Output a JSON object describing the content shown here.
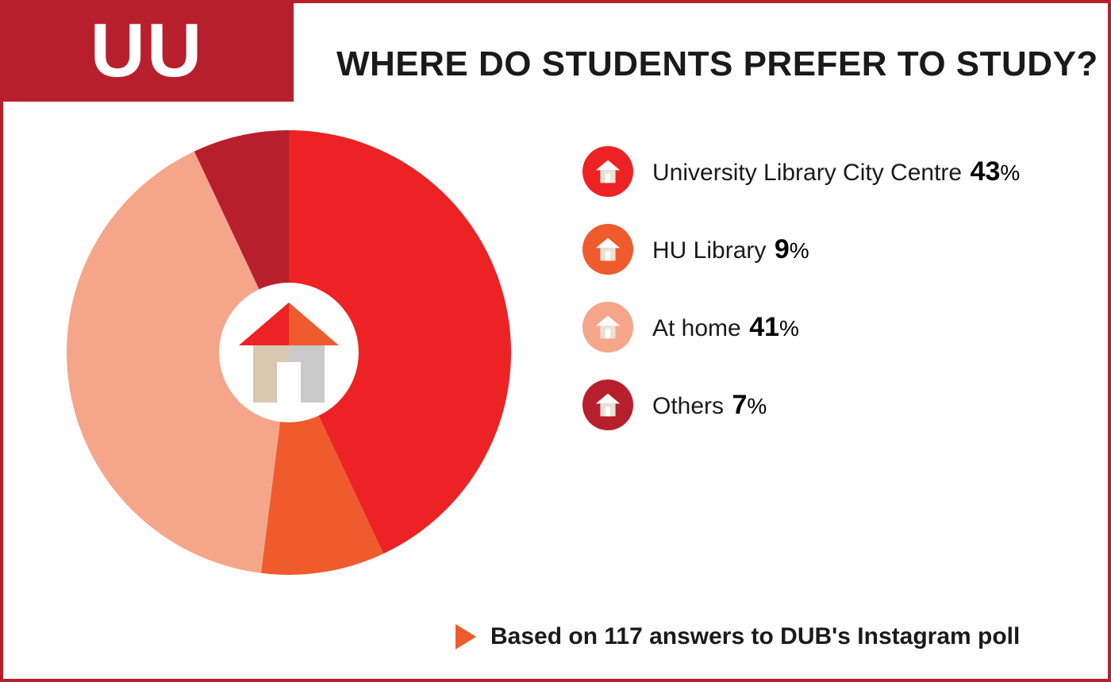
{
  "colors": {
    "border": "#b81f2d",
    "logo_bg": "#b81f2d",
    "title": "#1a1a1a",
    "footer_arrow": "#ef5b2c"
  },
  "logo": {
    "text": "UU"
  },
  "title": "WHERE DO STUDENTS PREFER TO STUDY?",
  "chart": {
    "type": "pie",
    "start_angle_deg": 0,
    "slices": [
      {
        "label": "University Library City Centre",
        "value": 43,
        "color": "#ed2224"
      },
      {
        "label": "HU Library",
        "value": 9,
        "color": "#ef5b2c"
      },
      {
        "label": "At home",
        "value": 41,
        "color": "#f5a68a"
      },
      {
        "label": "Others",
        "value": 7,
        "color": "#b81f2d"
      }
    ],
    "center_icon": {
      "roof_left_color": "#ed2224",
      "roof_right_color": "#ef5b2c",
      "wall_left_color": "#d9c7b0",
      "wall_right_color": "#c9c9c9",
      "door_color": "#ffffff"
    }
  },
  "legend": {
    "items": [
      {
        "label": "University Library City Centre",
        "value": "43",
        "badge_color": "#ed2224"
      },
      {
        "label": "HU Library",
        "value": "9",
        "badge_color": "#ef5b2c"
      },
      {
        "label": "At home",
        "value": "41",
        "badge_color": "#f5a68a"
      },
      {
        "label": "Others",
        "value": "7",
        "badge_color": "#b81f2d"
      }
    ],
    "pct_sign": "%"
  },
  "footer": {
    "text": "Based on 117 answers to DUB's Instagram poll"
  }
}
